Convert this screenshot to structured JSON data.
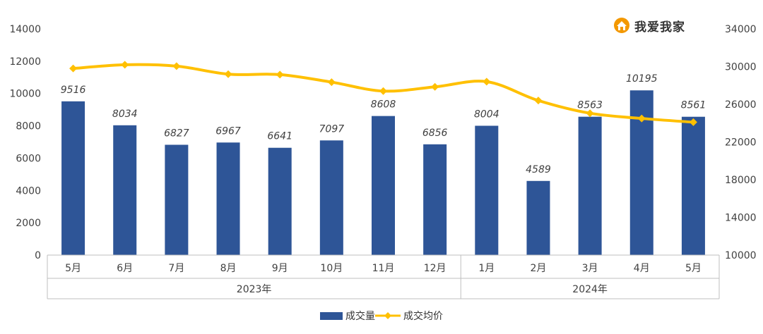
{
  "brand": {
    "text": "我爱我家",
    "icon": "house-logo-icon"
  },
  "colors": {
    "bar": "#2E5597",
    "line": "#FFC000",
    "axis": "#BFBFBF",
    "text": "#404040"
  },
  "chart_data": {
    "type": "bar+line",
    "categories": [
      "5月",
      "6月",
      "7月",
      "8月",
      "9月",
      "10月",
      "11月",
      "12月",
      "1月",
      "2月",
      "3月",
      "4月",
      "5月"
    ],
    "year_groups": [
      {
        "label": "2023年",
        "count": 8
      },
      {
        "label": "2024年",
        "count": 5
      }
    ],
    "series": [
      {
        "name": "成交量",
        "type": "bar",
        "axis": "left",
        "values": [
          9516,
          8034,
          6827,
          6967,
          6641,
          7097,
          8608,
          6856,
          8004,
          4589,
          8563,
          10195,
          8561
        ]
      },
      {
        "name": "成交均价",
        "type": "line",
        "axis": "right",
        "values": [
          29800,
          30200,
          30050,
          29200,
          29150,
          28350,
          27400,
          27850,
          28400,
          26400,
          25050,
          24500,
          24100
        ]
      }
    ],
    "y_left": {
      "min": 0,
      "max": 14000,
      "ticks": [
        0,
        2000,
        4000,
        6000,
        8000,
        10000,
        12000,
        14000
      ]
    },
    "y_right": {
      "min": 10000,
      "max": 34000,
      "ticks": [
        10000,
        14000,
        18000,
        22000,
        26000,
        30000,
        34000
      ]
    },
    "grid": false,
    "legend_position": "bottom"
  }
}
